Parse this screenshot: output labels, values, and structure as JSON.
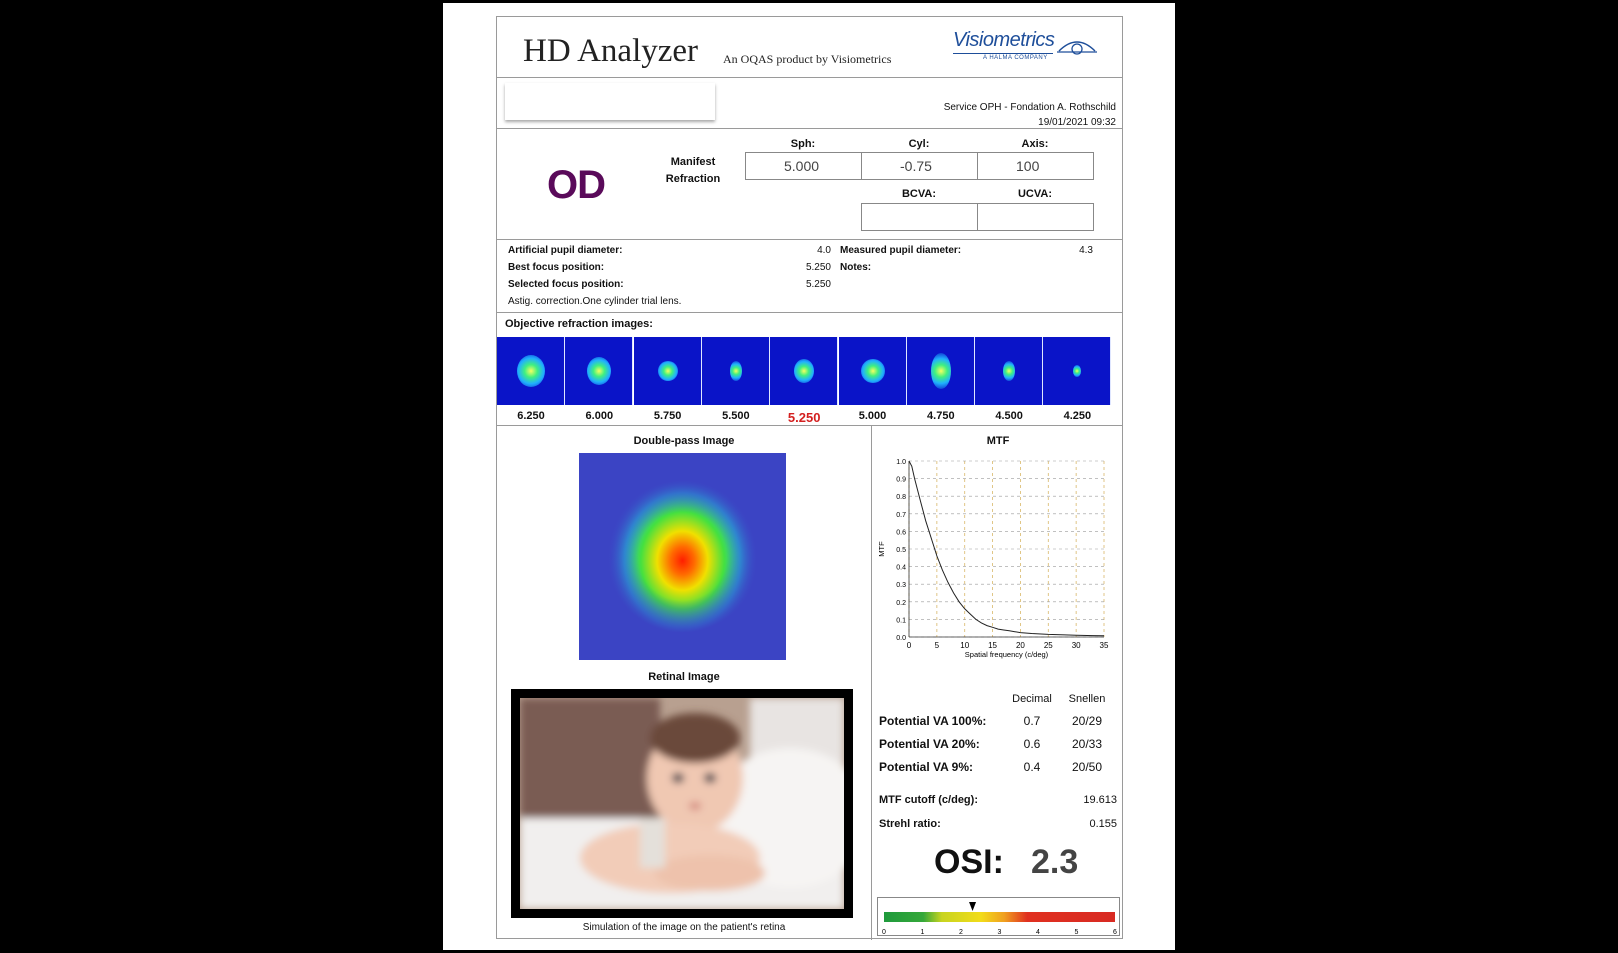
{
  "header": {
    "title": "HD Analyzer",
    "subtitle": "An OQAS product by Visiometrics",
    "logo_text": "Visiometrics",
    "logo_tagline": "A HALMA COMPANY"
  },
  "clinic": {
    "name": "Service OPH - Fondation A. Rothschild",
    "datetime": "19/01/2021  09:32"
  },
  "eye": "OD",
  "refraction": {
    "label_line1": "Manifest",
    "label_line2": "Refraction",
    "sph_label": "Sph:",
    "cyl_label": "Cyl:",
    "axis_label": "Axis:",
    "sph": "5.000",
    "cyl": "-0.75",
    "axis": "100",
    "bcva_label": "BCVA:",
    "ucva_label": "UCVA:",
    "bcva": "",
    "ucva": ""
  },
  "measurements": {
    "artificial_pupil_label": "Artificial pupil diameter:",
    "artificial_pupil": "4.0",
    "best_focus_label": "Best focus position:",
    "best_focus": "5.250",
    "selected_focus_label": "Selected focus position:",
    "selected_focus": "5.250",
    "astig_note": "Astig. correction.One cylinder trial lens.",
    "measured_pupil_label": "Measured pupil diameter:",
    "measured_pupil": "4.3",
    "notes_label": "Notes:"
  },
  "objective_images": {
    "title": "Objective refraction images:",
    "labels": [
      "6.250",
      "6.000",
      "5.750",
      "5.500",
      "5.250",
      "5.000",
      "4.750",
      "4.500",
      "4.250"
    ],
    "selected": "5.250",
    "selected_color": "#d42020"
  },
  "double_pass": {
    "title": "Double-pass Image"
  },
  "retinal": {
    "title": "Retinal Image",
    "caption": "Simulation of the image on the patient's retina"
  },
  "chart_data": {
    "type": "line",
    "title": "MTF",
    "xlabel": "Spatial frequency (c/deg)",
    "ylabel": "MTF",
    "xlim": [
      0,
      35
    ],
    "ylim": [
      0,
      1.0
    ],
    "xticks": [
      "0",
      "5",
      "10",
      "15",
      "20",
      "25",
      "30",
      "35"
    ],
    "yticks": [
      "0.0",
      "0.1",
      "0.2",
      "0.3",
      "0.4",
      "0.5",
      "0.6",
      "0.7",
      "0.8",
      "0.9",
      "1.0"
    ],
    "x": [
      0,
      0.5,
      1,
      2,
      3,
      4,
      5,
      6,
      7,
      8,
      9,
      10,
      11,
      12,
      13,
      14,
      15,
      16,
      17,
      18,
      19,
      20,
      22,
      25,
      28,
      30,
      33,
      35
    ],
    "y": [
      1.0,
      0.97,
      0.9,
      0.78,
      0.66,
      0.56,
      0.46,
      0.38,
      0.31,
      0.25,
      0.2,
      0.16,
      0.13,
      0.1,
      0.08,
      0.065,
      0.055,
      0.045,
      0.04,
      0.035,
      0.03,
      0.025,
      0.02,
      0.015,
      0.012,
      0.01,
      0.008,
      0.007
    ]
  },
  "va": {
    "col_decimal": "Decimal",
    "col_snellen": "Snellen",
    "rows": [
      {
        "label": "Potential VA 100%:",
        "decimal": "0.7",
        "snellen": "20/29"
      },
      {
        "label": "Potential VA 20%:",
        "decimal": "0.6",
        "snellen": "20/33"
      },
      {
        "label": "Potential VA 9%:",
        "decimal": "0.4",
        "snellen": "20/50"
      }
    ],
    "mtf_cutoff_label": "MTF cutoff (c/deg):",
    "mtf_cutoff": "19.613",
    "strehl_label": "Strehl ratio:",
    "strehl": "0.155"
  },
  "osi": {
    "label": "OSI:",
    "value": "2.3",
    "level": 2.3,
    "scale_max": 6,
    "ticks": [
      "0",
      "1",
      "2",
      "3",
      "4",
      "5",
      "6"
    ]
  }
}
